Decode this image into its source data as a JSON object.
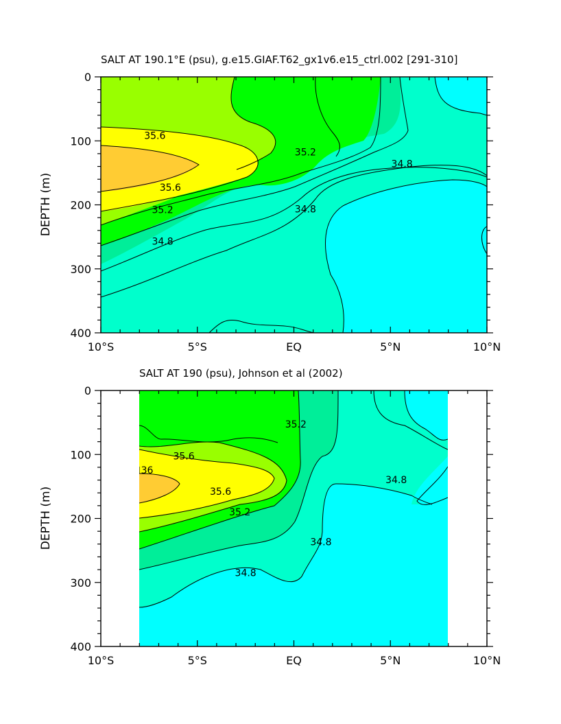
{
  "chart_data": [
    {
      "type": "contour",
      "title": "SALT AT 190.1°E (psu), g.e15.GIAF.T62_gx1v6.e15_ctrl.002 [291-310]",
      "xlabel": "",
      "ylabel": "DEPTH (m)",
      "xlim": [
        -10,
        10
      ],
      "ylim": [
        0,
        400
      ],
      "y_inverted": true,
      "data_xlim": [
        -10,
        10
      ],
      "x_ticks": [
        {
          "value": -10,
          "label": "10°S"
        },
        {
          "value": -5,
          "label": "5°S"
        },
        {
          "value": 0,
          "label": "EQ"
        },
        {
          "value": 5,
          "label": "5°N"
        },
        {
          "value": 10,
          "label": "10°N"
        }
      ],
      "y_ticks": [
        {
          "value": 0,
          "label": "0"
        },
        {
          "value": 100,
          "label": "100"
        },
        {
          "value": 200,
          "label": "200"
        },
        {
          "value": 300,
          "label": "300"
        },
        {
          "value": 400,
          "label": "400"
        }
      ],
      "contour_levels": [
        34.6,
        34.8,
        35.0,
        35.2,
        35.4,
        35.6,
        35.8,
        36.0
      ],
      "fill_colors": {
        "34.6": "#00ffff",
        "34.8": "#00ffcc",
        "35.0": "#00ee99",
        "35.2": "#00ff00",
        "35.4": "#99ff00",
        "35.6": "#ffff00",
        "35.8": "#ffcc33"
      },
      "contour_labels": [
        {
          "text": "35.6",
          "x": -7.2,
          "y": 97
        },
        {
          "text": "35.6",
          "x": -6.4,
          "y": 178
        },
        {
          "text": "35.2",
          "x": -6.8,
          "y": 213
        },
        {
          "text": "34.8",
          "x": -6.8,
          "y": 262
        },
        {
          "text": "35.2",
          "x": 0.6,
          "y": 123
        },
        {
          "text": "34.8",
          "x": 0.6,
          "y": 212
        },
        {
          "text": "34.8",
          "x": 5.6,
          "y": 141
        }
      ]
    },
    {
      "type": "contour",
      "title": "SALT AT 190 (psu), Johnson et al (2002)",
      "xlabel": "",
      "ylabel": "DEPTH (m)",
      "xlim": [
        -10,
        10
      ],
      "ylim": [
        0,
        400
      ],
      "y_inverted": true,
      "data_xlim": [
        -8,
        8
      ],
      "x_ticks": [
        {
          "value": -10,
          "label": "10°S"
        },
        {
          "value": -5,
          "label": "5°S"
        },
        {
          "value": 0,
          "label": "EQ"
        },
        {
          "value": 5,
          "label": "5°N"
        },
        {
          "value": 10,
          "label": "10°N"
        }
      ],
      "y_ticks": [
        {
          "value": 0,
          "label": "0"
        },
        {
          "value": 100,
          "label": "100"
        },
        {
          "value": 200,
          "label": "200"
        },
        {
          "value": 300,
          "label": "300"
        },
        {
          "value": 400,
          "label": "400"
        }
      ],
      "contour_levels": [
        34.6,
        34.8,
        35.0,
        35.2,
        35.4,
        35.6,
        35.8,
        36.0
      ],
      "fill_colors": {
        "34.6": "#00ffff",
        "34.8": "#00ffcc",
        "35.0": "#00ee99",
        "35.2": "#00ff00",
        "35.4": "#99ff00",
        "35.6": "#ffff00",
        "35.8": "#ffcc33"
      },
      "contour_labels": [
        {
          "text": "35.6",
          "x": -5.7,
          "y": 108
        },
        {
          "text": "36",
          "x": -7.6,
          "y": 130
        },
        {
          "text": "35.6",
          "x": -3.8,
          "y": 163
        },
        {
          "text": "35.2",
          "x": -2.8,
          "y": 195
        },
        {
          "text": "35.2",
          "x": 0.1,
          "y": 58
        },
        {
          "text": "34.8",
          "x": 1.4,
          "y": 242
        },
        {
          "text": "34.8",
          "x": -2.5,
          "y": 290
        },
        {
          "text": "34.8",
          "x": 5.3,
          "y": 145
        }
      ]
    }
  ]
}
